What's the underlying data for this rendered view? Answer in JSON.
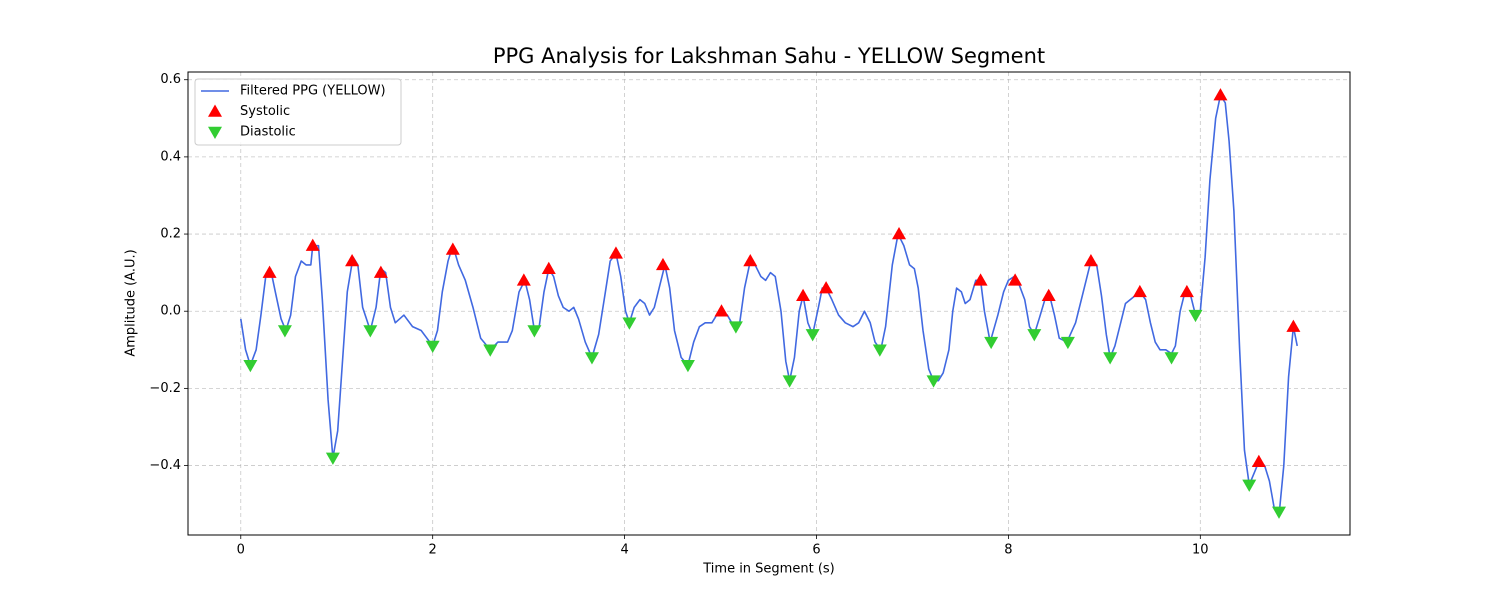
{
  "chart_data": {
    "type": "line",
    "title": "PPG Analysis for Lakshman Sahu - YELLOW Segment",
    "x_label": "Time in Segment (s)",
    "y_label": "Amplitude (A.U.)",
    "xlim": [
      -0.55,
      11.56
    ],
    "ylim": [
      -0.58,
      0.62
    ],
    "xticks": [
      0,
      2,
      4,
      6,
      8,
      10
    ],
    "yticks": [
      {
        "value": -0.4,
        "label": "−0.4"
      },
      {
        "value": -0.2,
        "label": "−0.2"
      },
      {
        "value": 0,
        "label": "0.0"
      },
      0.2,
      0.4,
      0.6
    ],
    "grid": true,
    "legend": "upper left",
    "series": [
      {
        "name": "Filtered PPG (YELLOW)",
        "type": "line",
        "color": "#4169e1",
        "x": [
          0,
          0.05,
          0.1,
          0.16,
          0.21,
          0.26,
          0.31,
          0.36,
          0.42,
          0.47,
          0.52,
          0.57,
          0.63,
          0.68,
          0.73,
          0.75,
          0.81,
          0.85,
          0.91,
          0.96,
          1.01,
          1.06,
          1.11,
          1.17,
          1.22,
          1.27,
          1.35,
          1.41,
          1.46,
          1.51,
          1.56,
          1.61,
          1.7,
          1.79,
          1.88,
          2.0,
          2.05,
          2.1,
          2.16,
          2.21,
          2.27,
          2.34,
          2.42,
          2.5,
          2.6,
          2.68,
          2.73,
          2.78,
          2.83,
          2.9,
          2.96,
          3.01,
          3.06,
          3.11,
          3.16,
          3.21,
          3.26,
          3.31,
          3.36,
          3.42,
          3.47,
          3.52,
          3.59,
          3.66,
          3.73,
          3.8,
          3.85,
          3.91,
          3.96,
          4.01,
          4.05,
          4.1,
          4.16,
          4.21,
          4.26,
          4.31,
          4.36,
          4.42,
          4.47,
          4.52,
          4.59,
          4.66,
          4.72,
          4.78,
          4.84,
          4.91,
          4.96,
          5.01,
          5.07,
          5.14,
          5.2,
          5.25,
          5.31,
          5.36,
          5.42,
          5.47,
          5.52,
          5.57,
          5.63,
          5.68,
          5.72,
          5.77,
          5.82,
          5.86,
          5.91,
          5.96,
          6.02,
          6.06,
          6.1,
          6.16,
          6.23,
          6.3,
          6.38,
          6.44,
          6.5,
          6.56,
          6.61,
          6.67,
          6.72,
          6.79,
          6.85,
          6.91,
          6.97,
          7.02,
          7.06,
          7.11,
          7.17,
          7.22,
          7.27,
          7.32,
          7.38,
          7.42,
          7.46,
          7.51,
          7.55,
          7.6,
          7.66,
          7.71,
          7.75,
          7.81,
          7.89,
          7.95,
          8.0,
          8.06,
          8.11,
          8.17,
          8.22,
          8.27,
          8.32,
          8.38,
          8.43,
          8.48,
          8.53,
          8.61,
          8.7,
          8.77,
          8.86,
          8.92,
          8.97,
          9.02,
          9.06,
          9.11,
          9.17,
          9.22,
          9.27,
          9.32,
          9.37,
          9.43,
          9.48,
          9.53,
          9.58,
          9.64,
          9.7,
          9.74,
          9.79,
          9.84,
          9.9,
          9.95,
          10.0,
          10.05,
          10.1,
          10.16,
          10.21,
          10.26,
          10.3,
          10.35,
          10.41,
          10.46,
          10.51,
          10.56,
          10.61,
          10.67,
          10.72,
          10.77,
          10.82,
          10.87,
          10.92,
          10.97,
          11.01
        ],
        "values": [
          -0.02,
          -0.1,
          -0.14,
          -0.1,
          -0.01,
          0.09,
          0.11,
          0.05,
          -0.02,
          -0.05,
          -0.01,
          0.09,
          0.13,
          0.12,
          0.12,
          0.17,
          0.17,
          0.03,
          -0.23,
          -0.38,
          -0.31,
          -0.13,
          0.05,
          0.14,
          0.12,
          0.01,
          -0.05,
          0.01,
          0.11,
          0.1,
          0.01,
          -0.03,
          -0.01,
          -0.04,
          -0.05,
          -0.09,
          -0.05,
          0.05,
          0.13,
          0.17,
          0.12,
          0.08,
          0.01,
          -0.07,
          -0.1,
          -0.08,
          -0.08,
          -0.08,
          -0.05,
          0.05,
          0.08,
          0.03,
          -0.05,
          -0.04,
          0.05,
          0.11,
          0.09,
          0.04,
          0.01,
          0.0,
          0.01,
          -0.02,
          -0.08,
          -0.12,
          -0.06,
          0.05,
          0.13,
          0.15,
          0.09,
          0.0,
          -0.03,
          0.01,
          0.03,
          0.02,
          -0.01,
          0.01,
          0.06,
          0.12,
          0.06,
          -0.05,
          -0.12,
          -0.14,
          -0.08,
          -0.04,
          -0.03,
          -0.03,
          -0.01,
          0.0,
          -0.01,
          -0.04,
          -0.03,
          0.06,
          0.13,
          0.12,
          0.09,
          0.08,
          0.1,
          0.09,
          0.0,
          -0.13,
          -0.18,
          -0.12,
          0.0,
          0.04,
          -0.03,
          -0.06,
          0.01,
          0.06,
          0.06,
          0.03,
          -0.01,
          -0.03,
          -0.04,
          -0.03,
          0.0,
          -0.03,
          -0.08,
          -0.1,
          -0.04,
          0.12,
          0.2,
          0.17,
          0.12,
          0.11,
          0.06,
          -0.05,
          -0.15,
          -0.18,
          -0.18,
          -0.16,
          -0.1,
          0.0,
          0.06,
          0.05,
          0.02,
          0.03,
          0.08,
          0.08,
          0.0,
          -0.08,
          -0.01,
          0.05,
          0.08,
          0.09,
          0.07,
          0.03,
          -0.04,
          -0.06,
          -0.02,
          0.03,
          0.04,
          -0.01,
          -0.07,
          -0.08,
          -0.03,
          0.04,
          0.13,
          0.12,
          0.04,
          -0.06,
          -0.12,
          -0.09,
          -0.03,
          0.02,
          0.03,
          0.04,
          0.05,
          0.03,
          -0.03,
          -0.08,
          -0.1,
          -0.1,
          -0.11,
          -0.09,
          0.0,
          0.05,
          0.04,
          -0.01,
          0.0,
          0.14,
          0.34,
          0.5,
          0.56,
          0.54,
          0.44,
          0.26,
          -0.1,
          -0.36,
          -0.45,
          -0.42,
          -0.39,
          -0.4,
          -0.44,
          -0.51,
          -0.53,
          -0.4,
          -0.17,
          -0.04,
          -0.09
        ]
      },
      {
        "name": "Systolic",
        "type": "scatter",
        "marker": "triangle-up",
        "color": "#ff0000",
        "x": [
          0.3,
          0.75,
          1.16,
          1.46,
          2.21,
          2.95,
          3.21,
          3.91,
          4.4,
          5.01,
          5.31,
          5.86,
          6.1,
          6.86,
          7.71,
          8.07,
          8.42,
          8.86,
          9.37,
          9.86,
          10.21,
          10.61,
          10.97
        ],
        "values": [
          0.1,
          0.17,
          0.13,
          0.1,
          0.16,
          0.08,
          0.11,
          0.15,
          0.12,
          0.0,
          0.13,
          0.04,
          0.06,
          0.2,
          0.08,
          0.08,
          0.04,
          0.13,
          0.05,
          0.05,
          0.56,
          -0.39,
          -0.04
        ]
      },
      {
        "name": "Diastolic",
        "type": "scatter",
        "marker": "triangle-down",
        "color": "#32cd32",
        "x": [
          0.1,
          0.46,
          0.96,
          1.35,
          2.0,
          2.6,
          3.06,
          3.66,
          4.05,
          4.66,
          5.16,
          5.72,
          5.96,
          6.66,
          7.22,
          7.82,
          8.27,
          8.62,
          9.06,
          9.7,
          9.95,
          10.51,
          10.82
        ],
        "values": [
          -0.14,
          -0.05,
          -0.38,
          -0.05,
          -0.09,
          -0.1,
          -0.05,
          -0.12,
          -0.03,
          -0.14,
          -0.04,
          -0.18,
          -0.06,
          -0.1,
          -0.18,
          -0.08,
          -0.06,
          -0.08,
          -0.12,
          -0.12,
          -0.01,
          -0.45,
          -0.52
        ]
      }
    ]
  }
}
